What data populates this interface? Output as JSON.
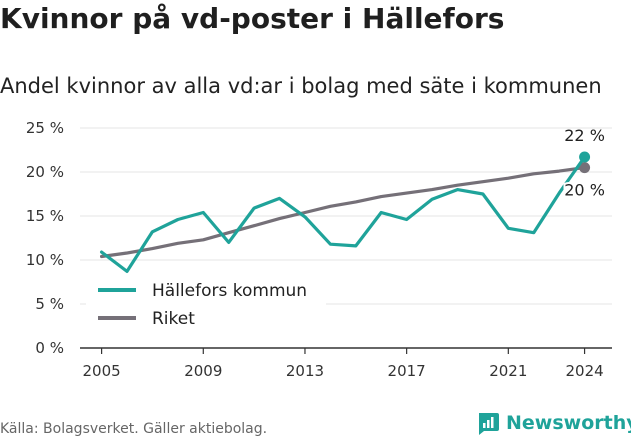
{
  "title": "Kvinnor på vd-poster i Hällefors",
  "subtitle": "Andel kvinnor av alla vd:ar i bolag med säte i kommunen",
  "source": "Källa: Bolagsverket. Gäller aktiebolag.",
  "brand": {
    "name": "Newsworthy",
    "icon": "newsworthy-logo-icon"
  },
  "colors": {
    "kommun": "#1fa39a",
    "riket": "#757078",
    "grid": "#e4e4e4",
    "axis": "#333333"
  },
  "chart_data": {
    "type": "line",
    "title": "Kvinnor på vd-poster i Hällefors",
    "subtitle": "Andel kvinnor av alla vd:ar i bolag med säte i kommunen",
    "ylim": [
      0,
      25
    ],
    "y_ticks": [
      0,
      5,
      10,
      15,
      20,
      25
    ],
    "y_tick_labels": [
      "0 %",
      "5 %",
      "10 %",
      "15 %",
      "20 %",
      "25 %"
    ],
    "x_ticks": [
      2005,
      2009,
      2013,
      2017,
      2021,
      2024
    ],
    "x_tick_labels": [
      "2005",
      "2009",
      "2013",
      "2017",
      "2021",
      "2024"
    ],
    "x": [
      2005,
      2006,
      2007,
      2008,
      2009,
      2010,
      2011,
      2012,
      2013,
      2014,
      2015,
      2016,
      2017,
      2018,
      2019,
      2020,
      2021,
      2022,
      2023,
      2024
    ],
    "series": [
      {
        "name": "Hällefors kommun",
        "color": "#1fa39a",
        "values": [
          10.9,
          8.7,
          13.2,
          14.6,
          15.4,
          12.0,
          15.9,
          17.0,
          14.9,
          11.8,
          11.6,
          15.4,
          14.6,
          16.9,
          18.0,
          17.5,
          13.6,
          13.1,
          17.6,
          21.7
        ],
        "end_label": "22 %"
      },
      {
        "name": "Riket",
        "color": "#757078",
        "values": [
          10.4,
          10.8,
          11.3,
          11.9,
          12.3,
          13.1,
          13.9,
          14.7,
          15.4,
          16.1,
          16.6,
          17.2,
          17.6,
          18.0,
          18.5,
          18.9,
          19.3,
          19.8,
          20.1,
          20.5
        ],
        "end_label": "20 %"
      }
    ],
    "legend": {
      "position": "bottom-left",
      "items": [
        "Hällefors kommun",
        "Riket"
      ]
    },
    "grid": {
      "horizontal": true,
      "vertical": false
    }
  }
}
